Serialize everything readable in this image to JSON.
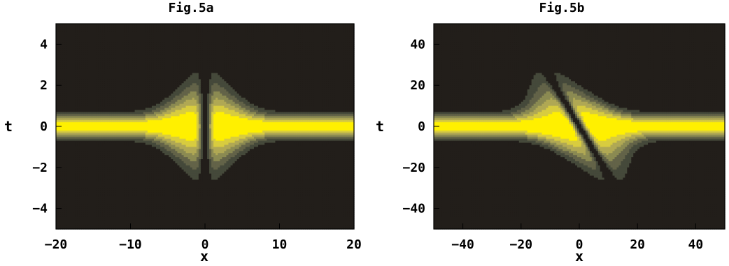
{
  "chart_data": [
    {
      "type": "contour",
      "title": "Fig.5a",
      "xlabel": "x",
      "ylabel": "t",
      "xlim": [
        -20,
        20
      ],
      "ylim": [
        -5,
        5
      ],
      "xticks": [
        -20,
        -10,
        0,
        10,
        20
      ],
      "xtick_labels": [
        "−20",
        "−10",
        "0",
        "10",
        "20"
      ],
      "yticks": [
        -4,
        -2,
        0,
        2,
        4
      ],
      "ytick_labels": [
        "−4",
        "−2",
        "0",
        "2",
        "4"
      ],
      "grid": false,
      "tilt": 0,
      "levels": 7,
      "colormap": [
        "#221e1a",
        "#45493a",
        "#636348",
        "#8b8a52",
        "#b0a854",
        "#d8cc3f",
        "#fff000"
      ]
    },
    {
      "type": "contour",
      "title": "Fig.5b",
      "xlabel": "x",
      "ylabel": "t",
      "xlim": [
        -50,
        50
      ],
      "ylim": [
        -50,
        50
      ],
      "xticks": [
        -40,
        -20,
        0,
        20,
        40
      ],
      "xtick_labels": [
        "−40",
        "−20",
        "0",
        "20",
        "40"
      ],
      "yticks": [
        -40,
        -20,
        0,
        20,
        40
      ],
      "ytick_labels": [
        "−40",
        "−20",
        "0",
        "20",
        "40"
      ],
      "grid": false,
      "tilt": -0.42,
      "levels": 7,
      "colormap": [
        "#221e1a",
        "#45493a",
        "#636348",
        "#8b8a52",
        "#b0a854",
        "#d8cc3f",
        "#fff000"
      ]
    }
  ]
}
